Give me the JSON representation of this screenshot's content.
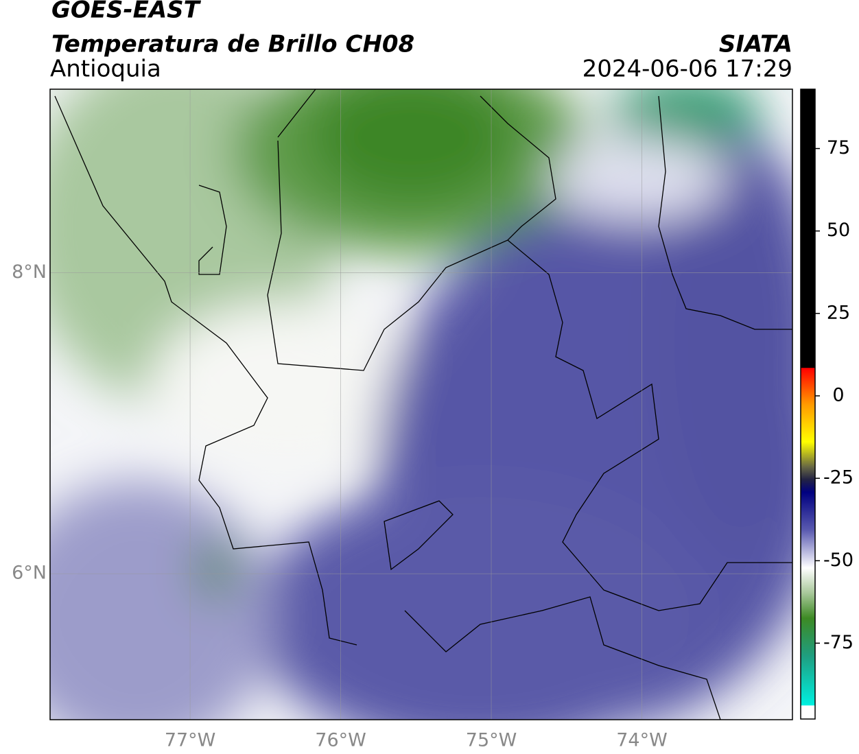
{
  "header": {
    "title": "GOES-EAST",
    "subtitle": "Temperatura de Brillo CH08",
    "region": "Antioquia",
    "source": "SIATA",
    "datetime": "2024-06-06 17:29"
  },
  "map": {
    "xlim": [
      -77.93,
      -73.0
    ],
    "ylim": [
      5.03,
      9.22
    ],
    "xticks": [
      {
        "value": -77,
        "label": "77°W"
      },
      {
        "value": -76,
        "label": "76°W"
      },
      {
        "value": -75,
        "label": "75°W"
      },
      {
        "value": -74,
        "label": "74°W"
      }
    ],
    "yticks": [
      {
        "value": 8,
        "label": "8°N"
      },
      {
        "value": 6,
        "label": "6°N"
      }
    ],
    "grid": true
  },
  "colorbar": {
    "lim": [
      -98,
      93
    ],
    "ticks": [
      75,
      50,
      25,
      0,
      -25,
      -50,
      -75
    ]
  }
}
